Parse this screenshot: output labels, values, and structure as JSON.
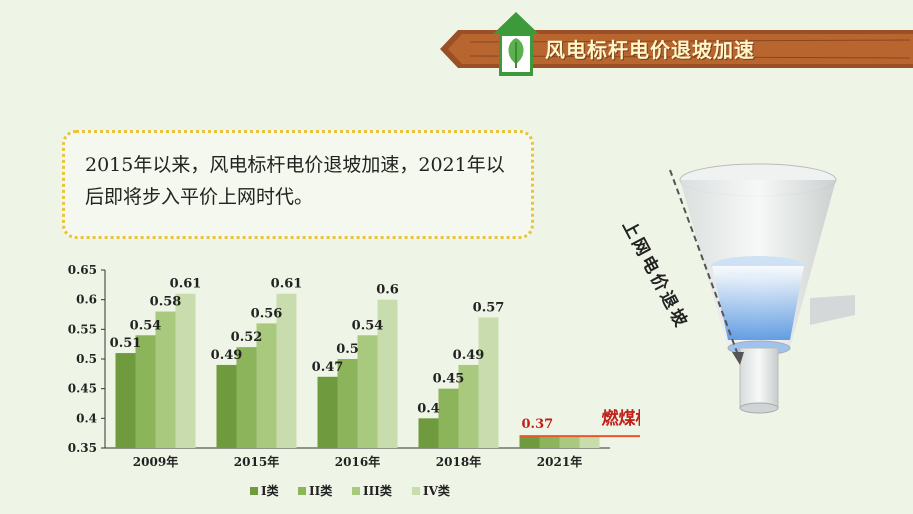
{
  "banner": {
    "title": "风电标杆电价退坡加速"
  },
  "callout": {
    "text": "2015年以来，风电标杆电价退坡加速，2021年以后即将步入平价上网时代。"
  },
  "funnel": {
    "arrow_label": "上网电价退坡"
  },
  "coal_line": {
    "label": "燃煤标杆电价",
    "value": 0.37,
    "value_label": "0.37"
  },
  "colors": {
    "I": "#6f9a3e",
    "II": "#8cb45a",
    "III": "#a9c97e",
    "IV": "#c9dcae",
    "coal_line": "#e8572a",
    "coal_label": "#c0201a"
  },
  "chart_data": {
    "type": "bar",
    "categories": [
      "2009年",
      "2015年",
      "2016年",
      "2018年",
      "2021年"
    ],
    "series": [
      {
        "name": "I类",
        "values": [
          0.51,
          0.49,
          0.47,
          0.4,
          null
        ],
        "labels": [
          "0.51",
          "0.49",
          "0.47",
          "0.4",
          ""
        ]
      },
      {
        "name": "II类",
        "values": [
          0.54,
          0.52,
          0.5,
          0.45,
          null
        ],
        "labels": [
          "0.54",
          "0.52",
          "0.5",
          "0.45",
          ""
        ]
      },
      {
        "name": "III类",
        "values": [
          0.58,
          0.56,
          0.54,
          0.49,
          null
        ],
        "labels": [
          "0.58",
          "0.56",
          "0.54",
          "0.49",
          ""
        ]
      },
      {
        "name": "IV类",
        "values": [
          0.61,
          0.61,
          0.6,
          0.57,
          null
        ],
        "labels": [
          "0.61",
          "0.61",
          "0.6",
          "0.57",
          ""
        ]
      }
    ],
    "ylim": [
      0.35,
      0.65
    ],
    "yticks": [
      "0.35",
      "0.4",
      "0.45",
      "0.5",
      "0.55",
      "0.6",
      "0.65"
    ],
    "legend_position": "bottom",
    "grid": false
  }
}
